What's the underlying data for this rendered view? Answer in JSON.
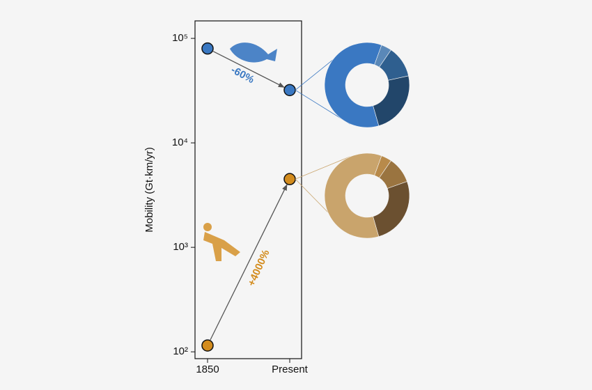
{
  "chart_data": [
    {
      "type": "line",
      "y_label": "Mobility (Gt·km/yr)",
      "log_scale": true,
      "categories": [
        "1850",
        "Present"
      ],
      "ylim": [
        86,
        147000
      ],
      "yticks": [
        {
          "value": 100,
          "label": "10²"
        },
        {
          "value": 1000,
          "label": "10³"
        },
        {
          "value": 10000,
          "label": "10⁴"
        },
        {
          "value": 100000,
          "label": "10⁵"
        }
      ],
      "series": [
        {
          "color": "#3a78c2",
          "values": [
            80000,
            32000
          ]
        },
        {
          "color": "#d38c1e",
          "values": [
            115,
            4500
          ]
        }
      ],
      "annotations": [
        {
          "text": "-60%",
          "color": "#3a78c2"
        },
        {
          "text": "+4000%",
          "color": "#d38c1e"
        }
      ]
    },
    {
      "type": "pie",
      "donut": true,
      "values": [
        4,
        12,
        24,
        60
      ],
      "colors": [
        "#5a88b8",
        "#2f5f8f",
        "#22466a",
        "#3a78c2"
      ]
    },
    {
      "type": "pie",
      "donut": true,
      "values": [
        4,
        10,
        26,
        60
      ],
      "colors": [
        "#b88a4a",
        "#9a7440",
        "#6b5030",
        "#c9a46c"
      ]
    }
  ]
}
